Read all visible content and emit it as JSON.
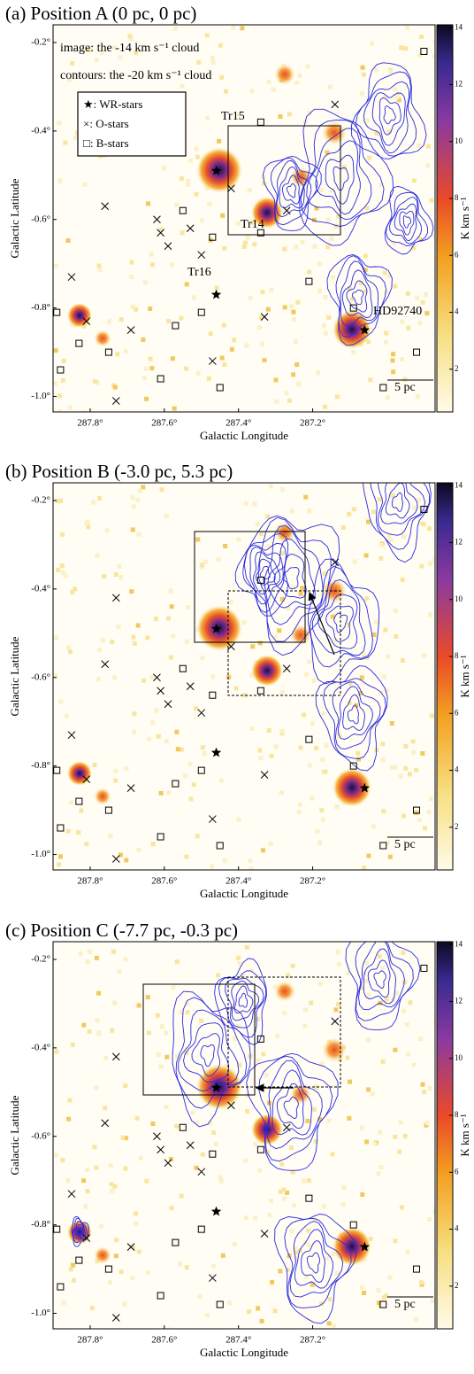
{
  "chart_data": [
    {
      "type": "scatter",
      "title": "(a) Position A (0 pc, 0 pc)",
      "x_label": "Galactic Longitude",
      "y_label": "Galactic Latitude",
      "colorbar_label": "K km s⁻¹",
      "xlim": [
        287.9,
        286.87
      ],
      "ylim": [
        -0.16,
        -1.035
      ],
      "clim": [
        0.5,
        14.1
      ],
      "xticks": [
        {
          "value": 287.8,
          "label": "287.8°"
        },
        {
          "value": 287.6,
          "label": "287.6°"
        },
        {
          "value": 287.4,
          "label": "287.4°"
        },
        {
          "value": 287.2,
          "label": "287.2°"
        }
      ],
      "yticks": [
        {
          "value": -0.2,
          "label": "-0.2°"
        },
        {
          "value": -0.4,
          "label": "-0.4°"
        },
        {
          "value": -0.6,
          "label": "-0.6°"
        },
        {
          "value": -0.8,
          "label": "-0.8°"
        },
        {
          "value": -1.0,
          "label": "-1.0°"
        }
      ],
      "cticks": [
        2,
        4,
        6,
        8,
        10,
        12,
        14
      ],
      "annotations": [
        "image: the -14 km s⁻¹ cloud",
        "contours: the -20 km s⁻¹ cloud",
        "Tr15",
        "Tr14",
        "Tr16",
        "HD92740",
        "5 pc"
      ],
      "series": [
        {
          "name": "★: WR-stars",
          "color": "#000000",
          "x": [
            287.46,
            287.46,
            287.06
          ],
          "y": [
            -0.49,
            -0.77,
            -0.85
          ]
        },
        {
          "name": "×: O-stars",
          "color": "#000000",
          "x": [
            287.73,
            287.76,
            287.62,
            287.61,
            287.59,
            287.53,
            287.5,
            287.85,
            287.81,
            287.69,
            287.47,
            287.73,
            287.33,
            287.14,
            287.42,
            287.27
          ],
          "y": [
            -0.42,
            -0.57,
            -0.6,
            -0.63,
            -0.66,
            -0.62,
            -0.68,
            -0.73,
            -0.83,
            -0.85,
            -0.92,
            -1.01,
            -0.82,
            -0.34,
            -0.53,
            -0.58
          ]
        },
        {
          "name": "□: B-stars",
          "color": "#000000",
          "x": [
            287.89,
            287.88,
            287.83,
            287.75,
            287.61,
            287.57,
            287.45,
            287.5,
            287.55,
            287.47,
            287.34,
            287.34,
            287.21,
            287.09,
            287.01,
            286.92,
            286.9
          ],
          "y": [
            -0.81,
            -0.94,
            -0.88,
            -0.9,
            -0.96,
            -0.84,
            -0.98,
            -0.81,
            -0.58,
            -0.64,
            -0.38,
            -0.63,
            -0.74,
            -0.8,
            -0.98,
            -0.9,
            -0.22
          ]
        }
      ],
      "legend": "upper left"
    },
    {
      "type": "scatter",
      "title": "(b) Position B (-3.0 pc, 5.3 pc)",
      "x_label": "Galactic Longitude",
      "y_label": "Galactic Latitude",
      "colorbar_label": "K km s⁻¹",
      "xlim": [
        287.9,
        286.87
      ],
      "ylim": [
        -0.16,
        -1.035
      ],
      "clim": [
        0.5,
        14.1
      ],
      "xticks": [
        {
          "value": 287.8,
          "label": "287.8°"
        },
        {
          "value": 287.6,
          "label": "287.6°"
        },
        {
          "value": 287.4,
          "label": "287.4°"
        },
        {
          "value": 287.2,
          "label": "287.2°"
        }
      ],
      "yticks": [
        {
          "value": -0.2,
          "label": "-0.2°"
        },
        {
          "value": -0.4,
          "label": "-0.4°"
        },
        {
          "value": -0.6,
          "label": "-0.6°"
        },
        {
          "value": -0.8,
          "label": "-0.8°"
        },
        {
          "value": -1.0,
          "label": "-1.0°"
        }
      ],
      "cticks": [
        2,
        4,
        6,
        8,
        10,
        12,
        14
      ],
      "annotations": [
        "5 pc"
      ],
      "series": [
        {
          "color": "#000000",
          "x": [
            287.46,
            287.46,
            287.06
          ],
          "y": [
            -0.49,
            -0.77,
            -0.85
          ]
        },
        {
          "color": "#000000",
          "x": [
            287.73,
            287.76,
            287.62,
            287.61,
            287.59,
            287.53,
            287.5,
            287.85,
            287.81,
            287.69,
            287.47,
            287.73,
            287.33,
            287.14,
            287.42,
            287.27
          ],
          "y": [
            -0.42,
            -0.57,
            -0.6,
            -0.63,
            -0.66,
            -0.62,
            -0.68,
            -0.73,
            -0.83,
            -0.85,
            -0.92,
            -1.01,
            -0.82,
            -0.34,
            -0.53,
            -0.58
          ]
        },
        {
          "color": "#000000",
          "x": [
            287.89,
            287.88,
            287.83,
            287.75,
            287.61,
            287.57,
            287.45,
            287.5,
            287.55,
            287.47,
            287.34,
            287.34,
            287.21,
            287.09,
            287.01,
            286.92,
            286.9
          ],
          "y": [
            -0.81,
            -0.94,
            -0.88,
            -0.9,
            -0.96,
            -0.84,
            -0.98,
            -0.81,
            -0.58,
            -0.64,
            -0.38,
            -0.63,
            -0.74,
            -0.8,
            -0.98,
            -0.9,
            -0.22
          ]
        }
      ]
    },
    {
      "type": "scatter",
      "title": "(c) Position C (-7.7 pc, -0.3 pc)",
      "x_label": "Galactic Longitude",
      "y_label": "Galactic Latitude",
      "colorbar_label": "K km s⁻¹",
      "xlim": [
        287.9,
        286.87
      ],
      "ylim": [
        -0.16,
        -1.035
      ],
      "clim": [
        0.5,
        14.1
      ],
      "xticks": [
        {
          "value": 287.8,
          "label": "287.8°"
        },
        {
          "value": 287.6,
          "label": "287.6°"
        },
        {
          "value": 287.4,
          "label": "287.4°"
        },
        {
          "value": 287.2,
          "label": "287.2°"
        }
      ],
      "yticks": [
        {
          "value": -0.2,
          "label": "-0.2°"
        },
        {
          "value": -0.4,
          "label": "-0.4°"
        },
        {
          "value": -0.6,
          "label": "-0.6°"
        },
        {
          "value": -0.8,
          "label": "-0.8°"
        },
        {
          "value": -1.0,
          "label": "-1.0°"
        }
      ],
      "cticks": [
        2,
        4,
        6,
        8,
        10,
        12,
        14
      ],
      "annotations": [
        "5 pc"
      ],
      "series": [
        {
          "color": "#000000",
          "x": [
            287.46,
            287.46,
            287.06
          ],
          "y": [
            -0.49,
            -0.77,
            -0.85
          ]
        },
        {
          "color": "#000000",
          "x": [
            287.73,
            287.76,
            287.62,
            287.61,
            287.59,
            287.53,
            287.5,
            287.85,
            287.81,
            287.69,
            287.47,
            287.73,
            287.33,
            287.14,
            287.42,
            287.27
          ],
          "y": [
            -0.42,
            -0.57,
            -0.6,
            -0.63,
            -0.66,
            -0.62,
            -0.68,
            -0.73,
            -0.83,
            -0.85,
            -0.92,
            -1.01,
            -0.82,
            -0.34,
            -0.53,
            -0.58
          ]
        },
        {
          "color": "#000000",
          "x": [
            287.89,
            287.88,
            287.83,
            287.75,
            287.61,
            287.57,
            287.45,
            287.5,
            287.55,
            287.47,
            287.34,
            287.34,
            287.21,
            287.09,
            287.01,
            286.92,
            286.9
          ],
          "y": [
            -0.81,
            -0.94,
            -0.88,
            -0.9,
            -0.96,
            -0.84,
            -0.98,
            -0.81,
            -0.58,
            -0.64,
            -0.38,
            -0.63,
            -0.74,
            -0.8,
            -0.98,
            -0.9,
            -0.22
          ]
        }
      ]
    }
  ]
}
